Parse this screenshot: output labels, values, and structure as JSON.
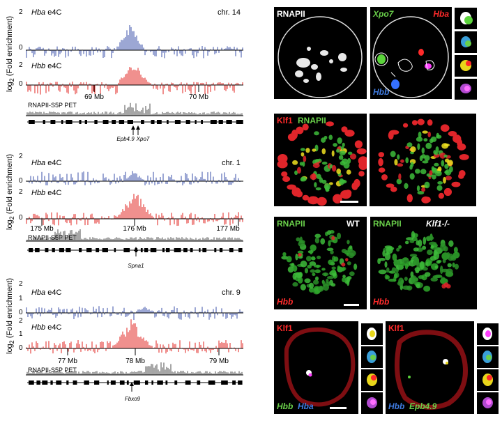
{
  "left": {
    "y_axis_label": "log2 (Fold enrichment)",
    "pet_label": "RNAPII-S5P PET",
    "groups": [
      {
        "chr": "chr. 14",
        "hba_label": "Hba",
        "hbb_label": "Hbb",
        "e4c": "e4C",
        "ticks_hba": [
          "2",
          "0"
        ],
        "ticks_hbb": [
          "2",
          "0"
        ],
        "xticks": [
          "69 Mb",
          "70 Mb"
        ],
        "genes": [
          "Epb4.9",
          "Xpo7"
        ]
      },
      {
        "chr": "chr. 1",
        "hba_label": "Hba",
        "hbb_label": "Hbb",
        "e4c": "e4C",
        "ticks_hba": [
          "2",
          "0"
        ],
        "ticks_hbb": [
          "2",
          "0"
        ],
        "xticks": [
          "175 Mb",
          "176 Mb",
          "177 Mb"
        ],
        "genes": [
          "Spna1"
        ]
      },
      {
        "chr": "chr. 9",
        "hba_label": "Hba",
        "hbb_label": "Hbb",
        "e4c": "e4C",
        "ticks_hba": [
          "2",
          "1",
          "0"
        ],
        "ticks_hbb": [
          "2",
          "1",
          "0"
        ],
        "xticks": [
          "77 Mb",
          "78 Mb",
          "79 Mb"
        ],
        "genes": [
          "Fbxo9"
        ]
      }
    ]
  },
  "right": {
    "row1": {
      "rnapii": "RNAPII",
      "xpo7": "Xpo7",
      "hba": "Hba",
      "hbb": "Hbb"
    },
    "row2": {
      "klf1": "Klf1",
      "rnapii": "RNAPII"
    },
    "row3": {
      "rnapii_a": "RNAPII",
      "wt": "WT",
      "rnapii_b": "RNAPII",
      "klf1ko": "Klf1-/-",
      "hbb_a": "Hbb",
      "hbb_b": "Hbb"
    },
    "row4": {
      "klf1_a": "Klf1",
      "klf1_b": "Klf1",
      "hbb_a": "Hbb",
      "hba": "Hba",
      "hbb_b": "Hbb",
      "epb": "Epb4.9"
    }
  },
  "colors": {
    "blue_track": "#3a4fa8",
    "red_track": "#e0201c",
    "green": "#6ad04a",
    "red_label": "#ff2a2a",
    "blue_label": "#3f7be0"
  }
}
